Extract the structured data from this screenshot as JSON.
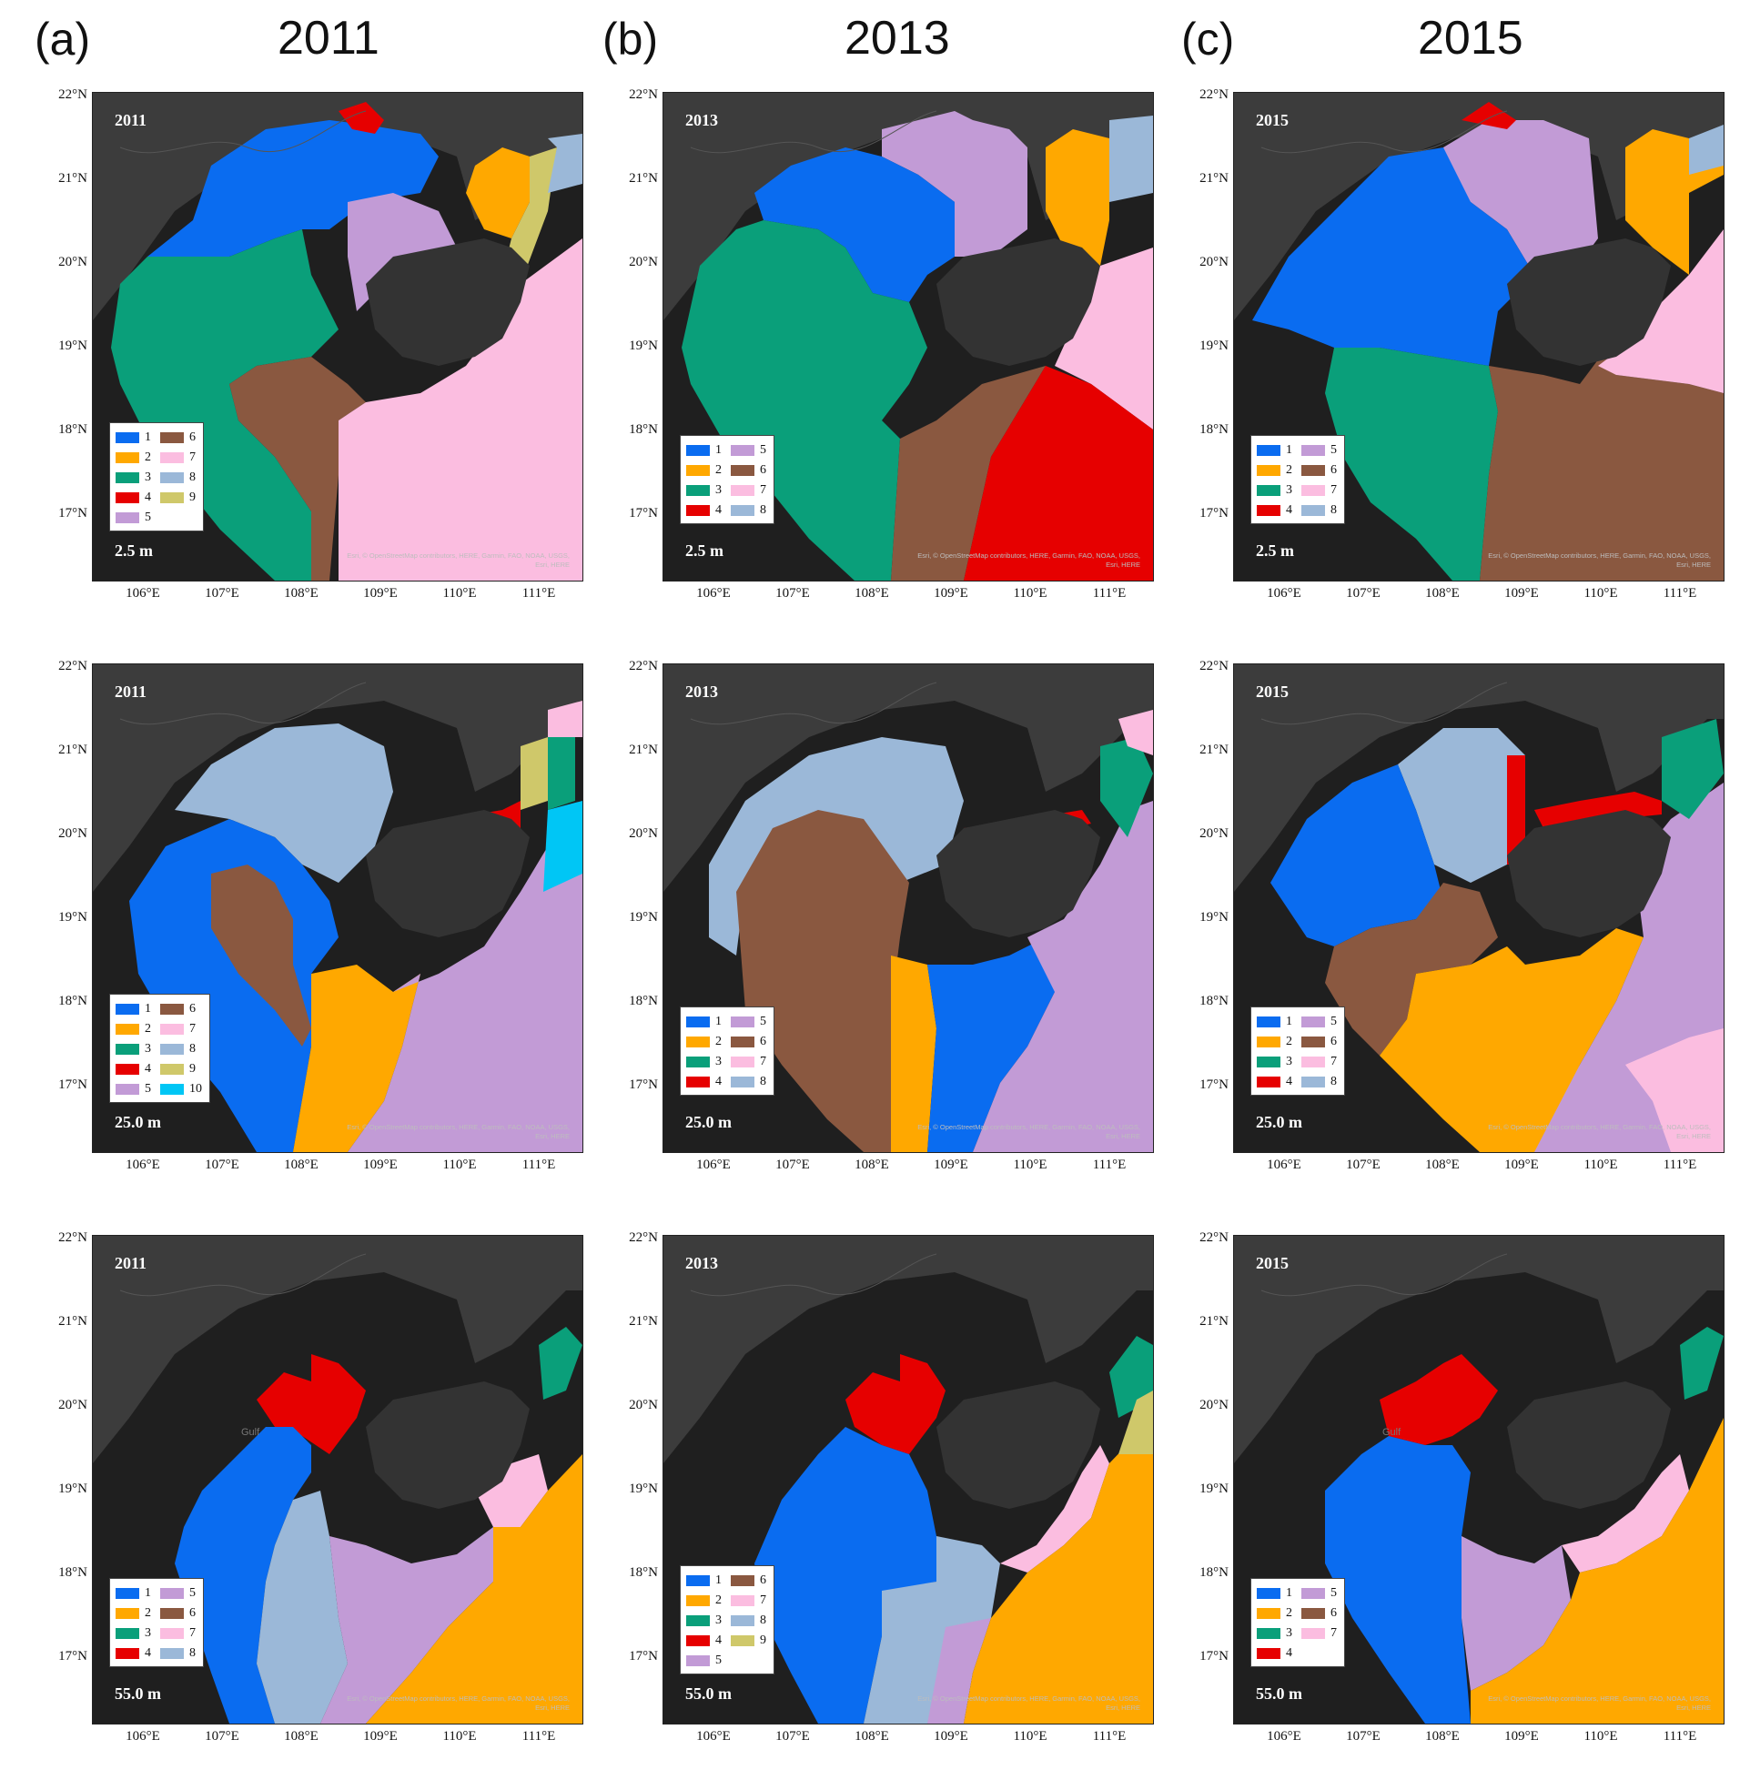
{
  "columns": [
    {
      "letter": "(a)",
      "year": "2011"
    },
    {
      "letter": "(b)",
      "year": "2013"
    },
    {
      "letter": "(c)",
      "year": "2015"
    }
  ],
  "axes": {
    "lat_ticks": [
      "22°N",
      "21°N",
      "20°N",
      "19°N",
      "18°N",
      "17°N"
    ],
    "lon_ticks": [
      "106°E",
      "107°E",
      "108°E",
      "109°E",
      "110°E",
      "111°E"
    ]
  },
  "attribution": "Esri, © OpenStreetMap contributors, HERE, Garmin, FAO, NOAA, USGS, Esri, HERE",
  "map_label": "Gulf",
  "colors": {
    "1": "#0a6cf0",
    "2": "#ffa800",
    "3": "#0a9f7a",
    "4": "#e60000",
    "5": "#c29bd6",
    "6": "#8a5840",
    "7": "#fbbde0",
    "8": "#9bb8d8",
    "9": "#cfc86a",
    "10": "#00c6f5"
  },
  "panels": [
    {
      "year": "2011",
      "depth": "2.5 m",
      "legend_items": [
        "1",
        "2",
        "3",
        "4",
        "5",
        "6",
        "7",
        "8",
        "9"
      ],
      "legend_rows": 5
    },
    {
      "year": "2013",
      "depth": "2.5 m",
      "legend_items": [
        "1",
        "2",
        "3",
        "4",
        "5",
        "6",
        "7",
        "8"
      ],
      "legend_rows": 4
    },
    {
      "year": "2015",
      "depth": "2.5 m",
      "legend_items": [
        "1",
        "2",
        "3",
        "4",
        "5",
        "6",
        "7",
        "8"
      ],
      "legend_rows": 4
    },
    {
      "year": "2011",
      "depth": "25.0 m",
      "legend_items": [
        "1",
        "2",
        "3",
        "4",
        "5",
        "6",
        "7",
        "8",
        "9",
        "10"
      ],
      "legend_rows": 5
    },
    {
      "year": "2013",
      "depth": "25.0 m",
      "legend_items": [
        "1",
        "2",
        "3",
        "4",
        "5",
        "6",
        "7",
        "8"
      ],
      "legend_rows": 4
    },
    {
      "year": "2015",
      "depth": "25.0 m",
      "legend_items": [
        "1",
        "2",
        "3",
        "4",
        "5",
        "6",
        "7",
        "8"
      ],
      "legend_rows": 4
    },
    {
      "year": "2011",
      "depth": "55.0 m",
      "legend_items": [
        "1",
        "2",
        "3",
        "4",
        "5",
        "6",
        "7",
        "8"
      ],
      "legend_rows": 4
    },
    {
      "year": "2013",
      "depth": "55.0 m",
      "legend_items": [
        "1",
        "2",
        "3",
        "4",
        "5",
        "6",
        "7",
        "8",
        "9"
      ],
      "legend_rows": 5
    },
    {
      "year": "2015",
      "depth": "55.0 m",
      "legend_items": [
        "1",
        "2",
        "3",
        "4",
        "5",
        "6",
        "7"
      ],
      "legend_rows": 4
    }
  ]
}
